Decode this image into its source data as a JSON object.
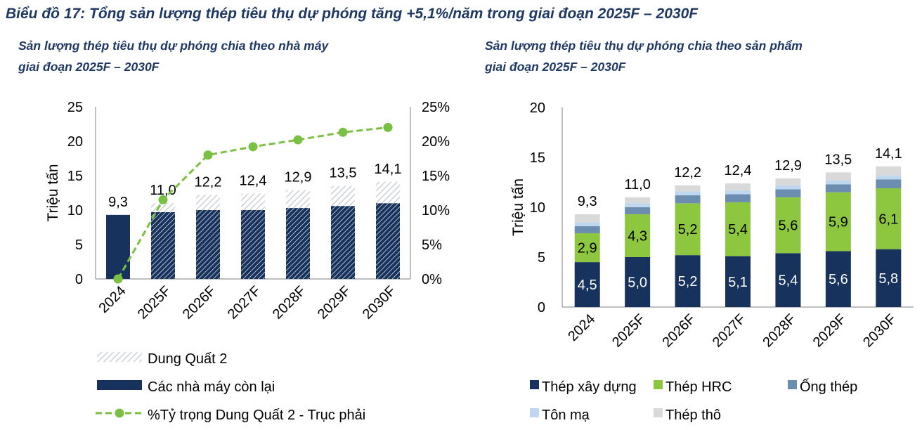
{
  "main_title": "Biểu đồ 17: Tổng sản lượng thép tiêu thụ dự phóng tăng +5,1%/năm trong giai đoạn 2025F – 2030F",
  "colors": {
    "navy": "#17325c",
    "hatch": "#c9ced6",
    "green_line": "#7ac143",
    "hrc_green": "#8dc63f",
    "pipe_blue": "#6a8db0",
    "galv_light_blue": "#bfd7ee",
    "raw_grey": "#d9d9d9",
    "title_blue": "#1f3864"
  },
  "chart_data": [
    {
      "type": "bar",
      "title": "Sản lượng thép tiêu thụ dự phóng chia theo nhà máy giai đoạn 2025F – 2030F",
      "title_lines": [
        "Sản lượng thép tiêu thụ dự phóng chia theo nhà máy",
        "giai đoạn 2025F – 2030F"
      ],
      "ylabel": "Triệu tấn",
      "ylim": [
        0,
        25
      ],
      "y_ticks": [
        "0",
        "5",
        "10",
        "15",
        "20",
        "25"
      ],
      "y2lim": [
        0,
        25
      ],
      "y2_ticks": [
        "0%",
        "5%",
        "10%",
        "15%",
        "20%",
        "25%"
      ],
      "categories": [
        "2024",
        "2025F",
        "2026F",
        "2027F",
        "2028F",
        "2029F",
        "2030F"
      ],
      "series": [
        {
          "name": "Các nhà máy còn lại",
          "type": "bar",
          "stack": true,
          "values": [
            9.3,
            9.7,
            10.0,
            10.0,
            10.3,
            10.6,
            11.0
          ]
        },
        {
          "name": "Dung Quất 2",
          "type": "bar",
          "stack": true,
          "values": [
            0,
            1.3,
            2.2,
            2.4,
            2.6,
            2.9,
            3.1
          ]
        },
        {
          "name": "%Tỷ trọng Dung Quất 2 - Trục phải",
          "type": "line",
          "axis": "right",
          "values": [
            0,
            11.5,
            18,
            19.2,
            20.2,
            21.3,
            22
          ]
        }
      ],
      "totals_labels": [
        "9,3",
        "11,0",
        "12,2",
        "12,4",
        "12,9",
        "13,5",
        "14,1"
      ],
      "legend": [
        "Dung Quất 2",
        "Các nhà máy còn lại",
        "%Tỷ trọng Dung Quất 2 - Trục phải"
      ],
      "legend_position": "bottom",
      "grid": false
    },
    {
      "type": "bar",
      "title": "Sản lượng thép tiêu thụ dự phóng chia theo sản phẩm giai đoạn 2025F – 2030F",
      "title_lines": [
        "Sản lượng thép tiêu thụ dự phóng chia theo sản phẩm",
        "giai đoạn 2025F – 2030F"
      ],
      "ylabel": "Triệu tấn",
      "ylim": [
        0,
        20
      ],
      "y_ticks": [
        "0",
        "5",
        "10",
        "15",
        "20"
      ],
      "categories": [
        "2024",
        "2025F",
        "2026F",
        "2027F",
        "2028F",
        "2029F",
        "2030F"
      ],
      "series": [
        {
          "name": "Thép xây dựng",
          "values": [
            4.5,
            5.0,
            5.2,
            5.1,
            5.4,
            5.6,
            5.8
          ],
          "labels": [
            "4,5",
            "5,0",
            "5,2",
            "5,1",
            "5,4",
            "5,6",
            "5,8"
          ]
        },
        {
          "name": "Thép HRC",
          "values": [
            2.9,
            4.3,
            5.2,
            5.4,
            5.6,
            5.9,
            6.1
          ],
          "labels": [
            "2,9",
            "4,3",
            "5,2",
            "5,4",
            "5,6",
            "5,9",
            "6,1"
          ]
        },
        {
          "name": "Ống thép",
          "values": [
            0.7,
            0.7,
            0.8,
            0.8,
            0.8,
            0.8,
            0.9
          ]
        },
        {
          "name": "Tôn mạ",
          "values": [
            0.4,
            0.4,
            0.4,
            0.4,
            0.4,
            0.4,
            0.4
          ]
        },
        {
          "name": "Thép thô",
          "values": [
            0.8,
            0.6,
            0.6,
            0.7,
            0.7,
            0.8,
            0.9
          ]
        }
      ],
      "totals_labels": [
        "9,3",
        "11,0",
        "12,2",
        "12,4",
        "12,9",
        "13,5",
        "14,1"
      ],
      "legend": [
        "Thép xây dựng",
        "Thép HRC",
        "Ống thép",
        "Tôn mạ",
        "Thép thô"
      ],
      "legend_position": "bottom",
      "grid": false
    }
  ]
}
